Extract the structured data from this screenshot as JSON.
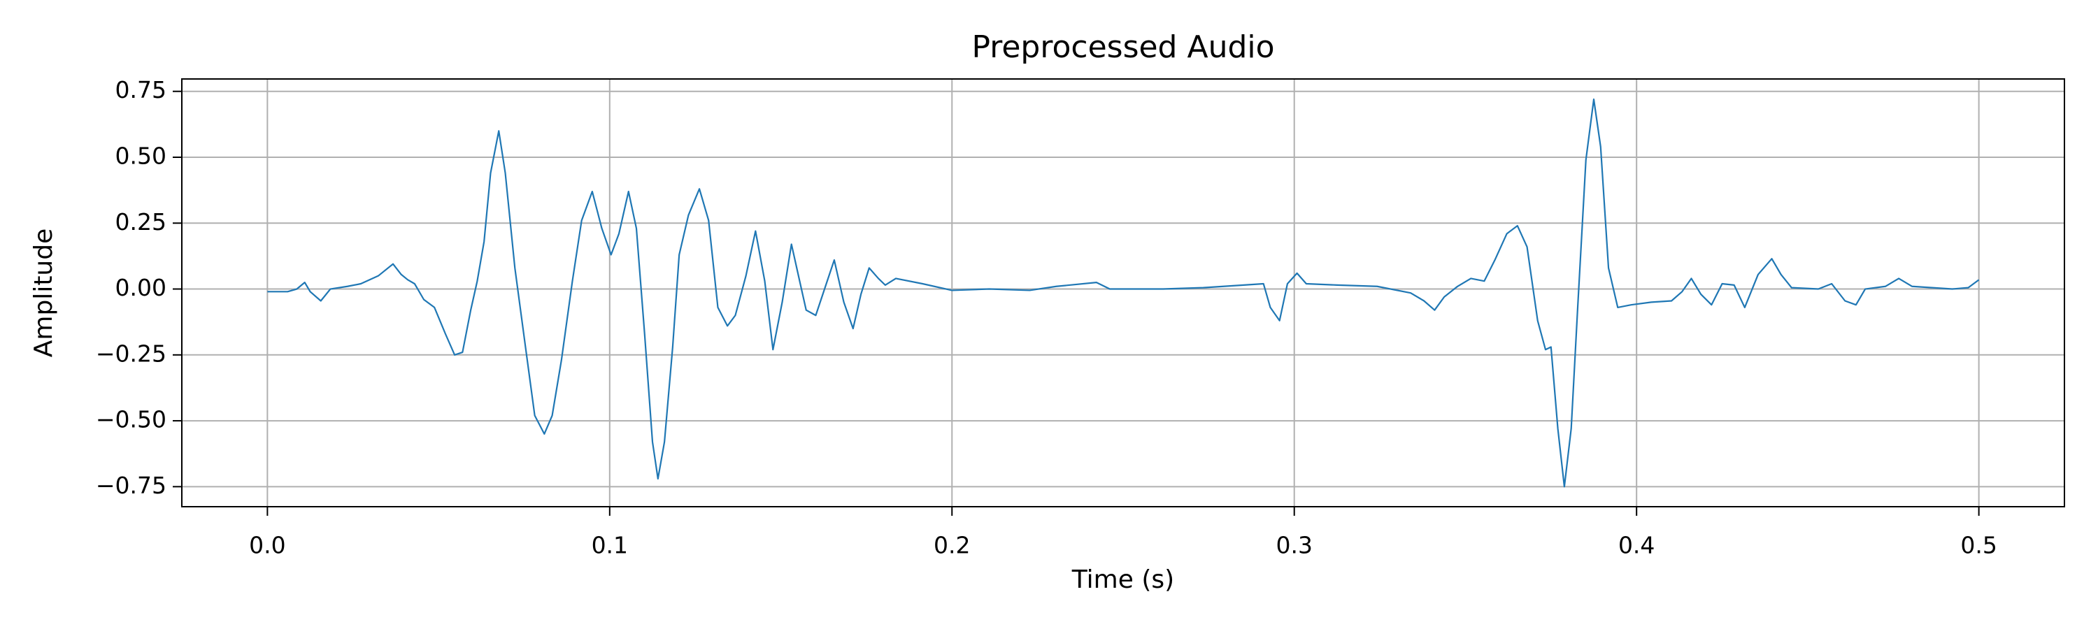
{
  "chart_data": {
    "type": "line",
    "title": "Preprocessed Audio",
    "xlabel": "Time (s)",
    "ylabel": "Amplitude",
    "color": "#1f77b4",
    "grid": true,
    "xlim": [
      -0.025,
      0.525
    ],
    "ylim": [
      -0.826,
      0.797
    ],
    "xticks": [
      {
        "value": 0,
        "label": "0.0"
      },
      0.1,
      0.2,
      0.3,
      0.4,
      0.5
    ],
    "yticks": [
      {
        "value": -0.75,
        "label": "−0.75"
      },
      {
        "value": -0.5,
        "label": "−0.50"
      },
      {
        "value": -0.25,
        "label": "−0.25"
      },
      {
        "value": 0,
        "label": "0.00"
      },
      0.25,
      {
        "value": 0.5,
        "label": "0.50"
      },
      0.75
    ],
    "x": [
      0,
      0.002,
      0.0059,
      0.0086,
      0.0109,
      0.0125,
      0.0156,
      0.0184,
      0.0234,
      0.0273,
      0.0324,
      0.0367,
      0.0391,
      0.041,
      0.043,
      0.0457,
      0.0488,
      0.052,
      0.0547,
      0.057,
      0.0594,
      0.0613,
      0.0633,
      0.0652,
      0.0676,
      0.0695,
      0.0723,
      0.0754,
      0.0781,
      0.0809,
      0.0832,
      0.0859,
      0.0891,
      0.0918,
      0.0949,
      0.0977,
      0.1004,
      0.1027,
      0.1055,
      0.1078,
      0.1102,
      0.1125,
      0.1141,
      0.116,
      0.1184,
      0.1203,
      0.123,
      0.1262,
      0.1289,
      0.1316,
      0.1344,
      0.1367,
      0.1398,
      0.1426,
      0.1453,
      0.1477,
      0.1504,
      0.1531,
      0.1555,
      0.1574,
      0.1602,
      0.1629,
      0.1656,
      0.1684,
      0.1711,
      0.1734,
      0.1758,
      0.1785,
      0.1805,
      0.1836,
      0.1914,
      0.2,
      0.2109,
      0.2227,
      0.2305,
      0.2422,
      0.2461,
      0.2617,
      0.2734,
      0.2852,
      0.291,
      0.293,
      0.2957,
      0.298,
      0.3008,
      0.3035,
      0.3125,
      0.3242,
      0.334,
      0.3379,
      0.341,
      0.3438,
      0.3477,
      0.3516,
      0.3555,
      0.3586,
      0.3621,
      0.3652,
      0.368,
      0.3711,
      0.3734,
      0.375,
      0.377,
      0.3789,
      0.3809,
      0.3828,
      0.3852,
      0.3875,
      0.3895,
      0.3918,
      0.3945,
      0.3984,
      0.4043,
      0.4102,
      0.4133,
      0.416,
      0.4188,
      0.4219,
      0.425,
      0.4285,
      0.4316,
      0.4355,
      0.4395,
      0.4422,
      0.4453,
      0.4531,
      0.457,
      0.4609,
      0.4641,
      0.4668,
      0.4727,
      0.4766,
      0.4805,
      0.4922,
      0.4969,
      0.5
    ],
    "values": [
      -0.01,
      -0.01,
      -0.01,
      0,
      0.025,
      -0.01,
      -0.045,
      0,
      0.01,
      0.02,
      0.05,
      0.095,
      0.055,
      0.035,
      0.02,
      -0.04,
      -0.07,
      -0.17,
      -0.25,
      -0.24,
      -0.08,
      0.03,
      0.18,
      0.44,
      0.6,
      0.44,
      0.08,
      -0.22,
      -0.48,
      -0.55,
      -0.48,
      -0.27,
      0.03,
      0.26,
      0.37,
      0.23,
      0.13,
      0.21,
      0.37,
      0.23,
      -0.17,
      -0.58,
      -0.72,
      -0.58,
      -0.22,
      0.13,
      0.28,
      0.38,
      0.26,
      -0.07,
      -0.14,
      -0.1,
      0.05,
      0.22,
      0.03,
      -0.23,
      -0.05,
      0.17,
      0.03,
      -0.08,
      -0.1,
      0.005,
      0.11,
      -0.05,
      -0.15,
      -0.02,
      0.08,
      0.04,
      0.015,
      0.04,
      0.02,
      -0.005,
      0,
      -0.005,
      0.01,
      0.025,
      0,
      0,
      0.005,
      0.015,
      0.02,
      -0.07,
      -0.12,
      0.02,
      0.06,
      0.02,
      0.015,
      0.01,
      -0.015,
      -0.045,
      -0.08,
      -0.03,
      0.01,
      0.04,
      0.03,
      0.11,
      0.21,
      0.24,
      0.16,
      -0.12,
      -0.23,
      -0.22,
      -0.53,
      -0.75,
      -0.53,
      -0.07,
      0.49,
      0.72,
      0.54,
      0.08,
      -0.07,
      -0.06,
      -0.05,
      -0.045,
      -0.01,
      0.04,
      -0.02,
      -0.06,
      0.02,
      0.015,
      -0.07,
      0.055,
      0.115,
      0.055,
      0.005,
      0,
      0.02,
      -0.045,
      -0.06,
      0,
      0.01,
      0.04,
      0.01,
      0,
      0.005,
      0.035
    ]
  }
}
